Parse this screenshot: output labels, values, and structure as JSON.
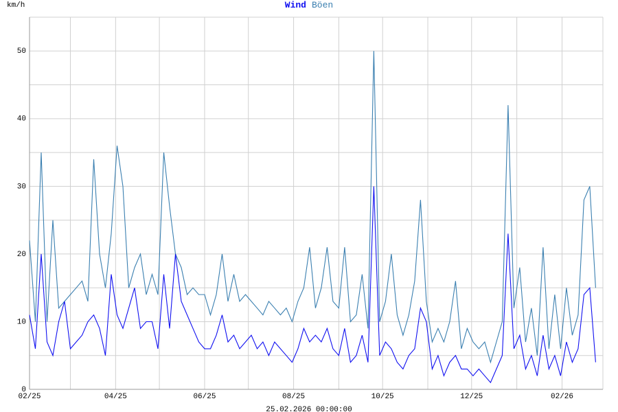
{
  "chart_data": {
    "type": "line",
    "y_label": "km/h",
    "footer": "25.02.2026 00:00:00",
    "x": [
      0,
      4,
      8,
      12,
      16,
      20,
      24,
      28,
      32,
      36,
      40,
      44,
      48,
      52,
      56,
      60,
      64,
      68,
      72,
      76,
      80,
      84,
      88,
      92,
      96,
      100,
      104,
      108,
      112,
      116,
      120,
      124,
      128,
      132,
      136,
      140,
      144,
      148,
      152,
      156,
      160,
      164,
      168,
      172,
      176,
      180,
      184,
      188,
      192,
      196,
      200,
      204,
      208,
      212,
      216,
      220,
      224,
      228,
      232,
      236,
      240,
      244,
      248,
      252,
      256,
      260,
      264,
      268,
      272,
      276,
      280,
      284,
      288,
      292,
      296,
      300,
      304,
      308,
      312,
      316,
      320,
      324,
      328,
      332,
      336,
      340,
      344,
      348,
      352,
      356,
      360,
      364,
      368,
      372,
      376,
      380,
      384,
      388
    ],
    "series": [
      {
        "name": "Wind",
        "color": "#1010f0",
        "values": [
          11,
          6,
          20,
          7,
          5,
          10,
          13,
          6,
          7,
          8,
          10,
          11,
          9,
          5,
          17,
          11,
          9,
          12,
          15,
          9,
          10,
          10,
          6,
          17,
          9,
          20,
          13,
          11,
          9,
          7,
          6,
          6,
          8,
          11,
          7,
          8,
          6,
          7,
          8,
          6,
          7,
          5,
          7,
          6,
          5,
          4,
          6,
          9,
          7,
          8,
          7,
          9,
          6,
          5,
          9,
          4,
          5,
          8,
          4,
          30,
          5,
          7,
          6,
          4,
          3,
          5,
          6,
          12,
          10,
          3,
          5,
          2,
          4,
          5,
          3,
          3,
          2,
          3,
          2,
          1,
          3,
          5,
          23,
          6,
          8,
          3,
          5,
          2,
          8,
          3,
          5,
          2,
          7,
          4,
          6,
          14,
          15,
          4
        ]
      },
      {
        "name": "Böen",
        "color": "#3a7fb0",
        "values": [
          22,
          10,
          35,
          10,
          25,
          12,
          13,
          14,
          15,
          16,
          13,
          34,
          20,
          15,
          23,
          36,
          30,
          15,
          18,
          20,
          14,
          17,
          14,
          35,
          27,
          20,
          18,
          14,
          15,
          14,
          14,
          11,
          14,
          20,
          13,
          17,
          13,
          14,
          13,
          12,
          11,
          13,
          12,
          11,
          12,
          10,
          13,
          15,
          21,
          12,
          15,
          21,
          13,
          12,
          21,
          10,
          11,
          17,
          9,
          50,
          10,
          13,
          20,
          11,
          8,
          11,
          16,
          28,
          13,
          7,
          9,
          7,
          10,
          16,
          6,
          9,
          7,
          6,
          7,
          4,
          7,
          10,
          42,
          12,
          18,
          7,
          12,
          5,
          21,
          6,
          14,
          6,
          15,
          8,
          11,
          28,
          30,
          15
        ]
      }
    ],
    "xlim": [
      0,
      393
    ],
    "xticks": [
      {
        "value": 0,
        "label": "02/25"
      },
      {
        "value": 59,
        "label": "04/25"
      },
      {
        "value": 120,
        "label": "06/25"
      },
      {
        "value": 181,
        "label": "08/25"
      },
      {
        "value": 242,
        "label": "10/25"
      },
      {
        "value": 303,
        "label": "12/25"
      },
      {
        "value": 365,
        "label": "02/26"
      }
    ],
    "x_minor_ticks": [
      28,
      89,
      150,
      212,
      273,
      334,
      393
    ],
    "ylim": [
      0,
      55
    ],
    "yticks": [
      0,
      10,
      20,
      30,
      40,
      50
    ],
    "y_minor_ticks": [
      5,
      15,
      25,
      35,
      45,
      55
    ],
    "grid": true
  }
}
